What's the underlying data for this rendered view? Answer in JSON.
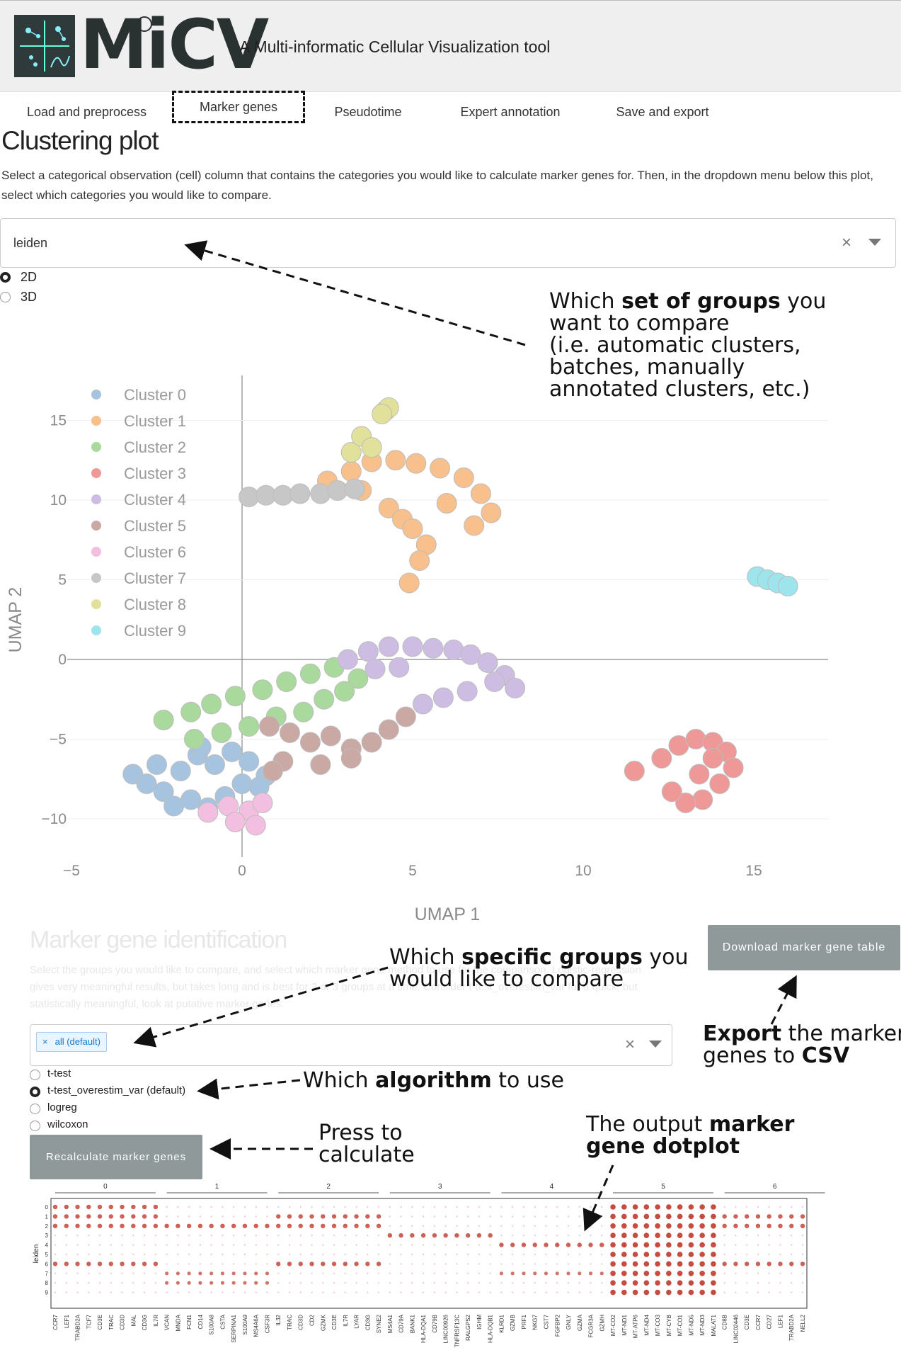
{
  "app": {
    "logo_text": "MiCV",
    "subtitle": "A Multi-informatic Cellular Visualization tool"
  },
  "tabs": [
    {
      "label": "Load and preprocess"
    },
    {
      "label": "Marker genes"
    },
    {
      "label": "Pseudotime"
    },
    {
      "label": "Expert annotation"
    },
    {
      "label": "Save and export"
    }
  ],
  "clustering": {
    "title": "Clustering plot",
    "description": "Select a categorical observation (cell) column that contains the categories you would like to calculate marker genes for. Then, in the dropdown menu below this plot, select which categories you would like to compare.",
    "obs_select_value": "leiden",
    "dim_options": [
      {
        "label": "2D",
        "selected": true
      },
      {
        "label": "3D",
        "selected": false
      }
    ]
  },
  "annotations": {
    "groups": {
      "p1": "Which ",
      "b1": "set of groups",
      "p2": " you",
      "line2": "want to compare",
      "line3": "(i.e. automatic clusters,",
      "line4": "batches, manually",
      "line5": "annotated clusters, etc.)"
    },
    "specific": {
      "p1": "Which ",
      "b1": "specific groups",
      "p2": " you",
      "line2": "would like to compare"
    },
    "algorithm": {
      "p1": "Which ",
      "b1": "algorithm",
      "p2": " to use"
    },
    "press": {
      "line1": "Press to",
      "line2": "calculate"
    },
    "dotplot": {
      "p1": "The output ",
      "b1": "marker",
      "line2": "gene dotplot"
    },
    "export": {
      "b1": "Export",
      "p1": " the marker",
      "p2": "genes to ",
      "b2": "CSV"
    }
  },
  "marker": {
    "title": "Marker gene identification",
    "description": "Select the groups you would like to compare, and select which marker gene method to use for the comparison. Logistic-regression gives very meaningful results, but takes long and is best for 2 or 3 groups at a time. Consider t-test_overestim_var for a quick, but statistically meaningful, look at putative marker genes.",
    "group_tag": "all (default)",
    "tag_close": "×",
    "clear": "×",
    "algorithms": [
      {
        "label": "t-test",
        "selected": false
      },
      {
        "label": "t-test_overestim_var (default)",
        "selected": true
      },
      {
        "label": "logreg",
        "selected": false
      },
      {
        "label": "wilcoxon",
        "selected": false
      }
    ],
    "recalc_button": "Recalculate marker genes",
    "download_button": "Download marker gene table"
  },
  "colors": {
    "cluster": [
      "#a6c4df",
      "#f7c08d",
      "#a9d99c",
      "#ee9998",
      "#cdbde3",
      "#caa9a4",
      "#f2bfe0",
      "#c7c7c7",
      "#e1e19c",
      "#9ee4ec"
    ],
    "dot": "#c0392b",
    "button": "#8f9999"
  },
  "chart_data": [
    {
      "type": "scatter",
      "title": "",
      "xlabel": "UMAP 1",
      "ylabel": "UMAP 2",
      "xlim": [
        -5,
        17
      ],
      "ylim": [
        -12,
        17
      ],
      "xticks": [
        -5,
        0,
        5,
        10,
        15
      ],
      "yticks": [
        -10,
        -5,
        0,
        5,
        10,
        15
      ],
      "legend_position": "top-left",
      "series": [
        {
          "name": "Cluster 0",
          "x": [
            -3.2,
            -2.8,
            -2.3,
            -1.8,
            -1.3,
            -0.8,
            -0.3,
            0.2,
            0.7,
            -2.5,
            -1.5,
            -0.5,
            0.5,
            -2.0,
            -1.0,
            0.0,
            -1.2
          ],
          "y": [
            -7.2,
            -7.8,
            -8.3,
            -7.0,
            -6.0,
            -6.6,
            -5.8,
            -6.4,
            -7.3,
            -6.6,
            -8.8,
            -8.6,
            -8.0,
            -9.2,
            -9.3,
            -7.8,
            -5.5
          ]
        },
        {
          "name": "Cluster 1",
          "x": [
            2.5,
            3.2,
            3.8,
            4.5,
            5.1,
            5.8,
            6.5,
            7.0,
            7.3,
            4.3,
            4.7,
            5.0,
            5.4,
            5.2,
            4.9,
            6.0,
            3.5,
            6.8
          ],
          "y": [
            11.2,
            11.8,
            12.4,
            12.5,
            12.3,
            12.0,
            11.4,
            10.4,
            9.2,
            9.5,
            8.8,
            8.2,
            7.2,
            6.2,
            4.8,
            9.8,
            10.6,
            8.4
          ]
        },
        {
          "name": "Cluster 2",
          "x": [
            -2.3,
            -1.5,
            -0.9,
            -0.2,
            0.6,
            1.3,
            2.0,
            2.7,
            3.4,
            3.0,
            2.4,
            1.8,
            1.0,
            0.2,
            -0.6,
            -1.4
          ],
          "y": [
            -3.8,
            -3.3,
            -2.8,
            -2.3,
            -1.9,
            -1.4,
            -0.9,
            -0.5,
            -1.2,
            -2.0,
            -2.5,
            -3.3,
            -3.6,
            -4.2,
            -4.6,
            -5.0
          ]
        },
        {
          "name": "Cluster 3",
          "x": [
            12.3,
            12.8,
            13.3,
            13.8,
            14.2,
            14.4,
            14.0,
            13.5,
            13.0,
            12.6,
            13.4,
            11.5,
            13.8
          ],
          "y": [
            -6.2,
            -5.4,
            -5.0,
            -5.2,
            -5.8,
            -6.8,
            -7.8,
            -8.8,
            -9.0,
            -8.3,
            -7.2,
            -7.0,
            -6.2
          ]
        },
        {
          "name": "Cluster 4",
          "x": [
            3.1,
            3.7,
            4.3,
            5.0,
            5.6,
            6.2,
            6.7,
            7.2,
            7.7,
            8.0,
            6.6,
            5.9,
            5.3,
            4.6,
            3.9,
            7.4
          ],
          "y": [
            0.0,
            0.5,
            0.8,
            0.8,
            0.7,
            0.6,
            0.3,
            -0.2,
            -1.0,
            -1.8,
            -2.0,
            -2.4,
            -2.8,
            -0.5,
            -0.6,
            -1.4
          ]
        },
        {
          "name": "Cluster 5",
          "x": [
            0.8,
            1.4,
            2.0,
            2.6,
            3.2,
            3.8,
            4.3,
            1.2,
            2.3,
            3.2,
            4.8,
            0.9
          ],
          "y": [
            -4.2,
            -4.6,
            -5.2,
            -4.8,
            -5.6,
            -5.2,
            -4.4,
            -6.4,
            -6.6,
            -6.2,
            -3.6,
            -7.0
          ]
        },
        {
          "name": "Cluster 6",
          "x": [
            -1.0,
            -0.4,
            0.2,
            0.6,
            -0.2,
            0.4
          ],
          "y": [
            -9.6,
            -9.2,
            -9.5,
            -9.0,
            -10.2,
            -10.4
          ]
        },
        {
          "name": "Cluster 7",
          "x": [
            0.2,
            0.7,
            1.2,
            1.7,
            2.3,
            2.8,
            3.3
          ],
          "y": [
            10.2,
            10.3,
            10.3,
            10.4,
            10.4,
            10.6,
            10.7
          ]
        },
        {
          "name": "Cluster 8",
          "x": [
            3.2,
            3.5,
            3.8,
            4.2,
            4.3,
            4.1
          ],
          "y": [
            13.0,
            14.0,
            13.3,
            15.6,
            15.8,
            15.4
          ]
        },
        {
          "name": "Cluster 9",
          "x": [
            15.1,
            15.4,
            15.7,
            16.0
          ],
          "y": [
            5.2,
            5.0,
            4.8,
            4.6
          ]
        }
      ]
    },
    {
      "type": "scatter",
      "title": "",
      "xlabel": "",
      "ylabel": "leiden",
      "group_labels": [
        "0",
        "1",
        "2",
        "3",
        "4",
        "5",
        "6"
      ],
      "categories_y": [
        "0",
        "1",
        "2",
        "3",
        "4",
        "5",
        "6",
        "7",
        "8",
        "9"
      ],
      "genes": [
        "CCR7",
        "LEF1",
        "TRABD2A",
        "TCF7",
        "CD3E",
        "TRAC",
        "CD3D",
        "MAL",
        "CD3G",
        "IL7R",
        "VCAN",
        "MNDA",
        "FCN1",
        "CD14",
        "S100A8",
        "CSTA",
        "SERPINA1",
        "S100A9",
        "MS4A6A",
        "CSF3R",
        "IL32",
        "TRAC",
        "CD3D",
        "CD2",
        "GZMK",
        "CD3E",
        "IL7R",
        "LYAR",
        "CD3G",
        "SYNE2",
        "MS4A1",
        "CD79A",
        "BANK1",
        "HLA-DQA1",
        "CD79B",
        "LINC00926",
        "TNFRSF13C",
        "RALGPS2",
        "IGHM",
        "HLA-DQB1",
        "KLRD1",
        "GZMB",
        "PRF1",
        "NKG7",
        "CST7",
        "FGFBP2",
        "GNLY",
        "GZMA",
        "FCGR3A",
        "GZMH",
        "MT-CO2",
        "MT-ND1",
        "MT-ATP6",
        "MT-ND4",
        "MT-CO3",
        "MT-CYB",
        "MT-CO1",
        "MT-ND5",
        "MT-ND3",
        "MALAT1",
        "CD8B",
        "LINC02446",
        "CD3E",
        "CCR7",
        "CD27",
        "LEF1",
        "TRABD2A",
        "NELL2"
      ]
    }
  ]
}
